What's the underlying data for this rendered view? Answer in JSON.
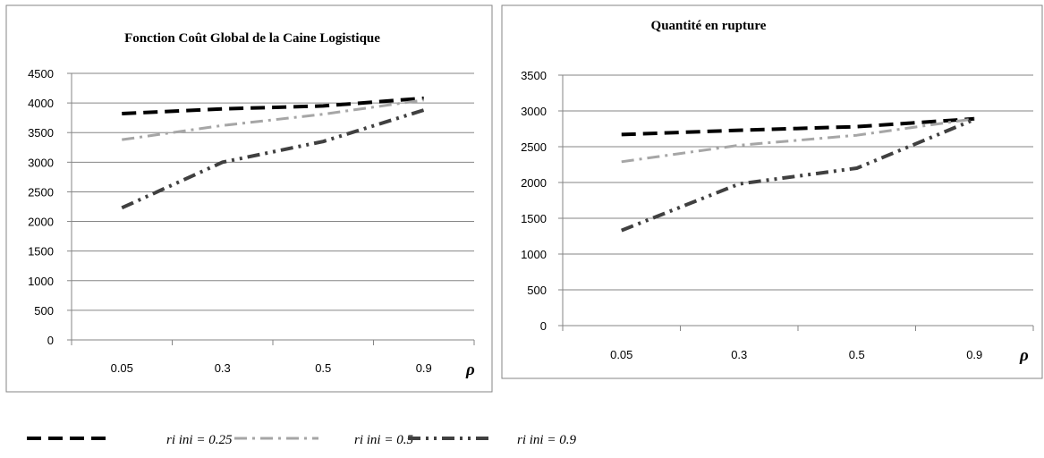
{
  "chart_data": [
    {
      "type": "line",
      "title": "Fonction Coût Global de la Caine Logistique",
      "categories": [
        "0.05",
        "0.3",
        "0.5",
        "0.9"
      ],
      "xlabel": "ρ",
      "ylabel": "",
      "ylim": [
        0,
        4500
      ],
      "yticks": [
        0,
        500,
        1000,
        1500,
        2000,
        2500,
        3000,
        3500,
        4000,
        4500
      ],
      "grid": true,
      "series": [
        {
          "name": "ri ini = 0.25",
          "values": [
            3820,
            3900,
            3950,
            4080
          ]
        },
        {
          "name": "ri ini = 0.5",
          "values": [
            3380,
            3620,
            3810,
            4050
          ]
        },
        {
          "name": "ri ini = 0.9",
          "values": [
            2230,
            3000,
            3350,
            3880
          ]
        }
      ]
    },
    {
      "type": "line",
      "title": "Quantité en rupture",
      "categories": [
        "0.05",
        "0.3",
        "0.5",
        "0.9"
      ],
      "xlabel": "ρ",
      "ylabel": "",
      "ylim": [
        0,
        3500
      ],
      "yticks": [
        0,
        500,
        1000,
        1500,
        2000,
        2500,
        3000,
        3500
      ],
      "grid": true,
      "series": [
        {
          "name": "ri ini = 0.25",
          "values": [
            2670,
            2730,
            2780,
            2890
          ]
        },
        {
          "name": "ri ini = 0.5",
          "values": [
            2290,
            2520,
            2660,
            2890
          ]
        },
        {
          "name": "ri ini = 0.9",
          "values": [
            1330,
            1980,
            2200,
            2880
          ]
        }
      ]
    }
  ],
  "legend": [
    {
      "label": "ri ini = 0.25",
      "color": "#000000",
      "dash": "dash"
    },
    {
      "label": "ri ini = 0.5",
      "color": "#a6a6a6",
      "dash": "dash-dot"
    },
    {
      "label": "ri ini = 0.9",
      "color": "#404040",
      "dash": "dash-dot-dot"
    }
  ],
  "colors": {
    "series1": "#000000",
    "series2": "#a6a6a6",
    "series3": "#404040",
    "grid": "#868686",
    "frame": "#868686"
  }
}
